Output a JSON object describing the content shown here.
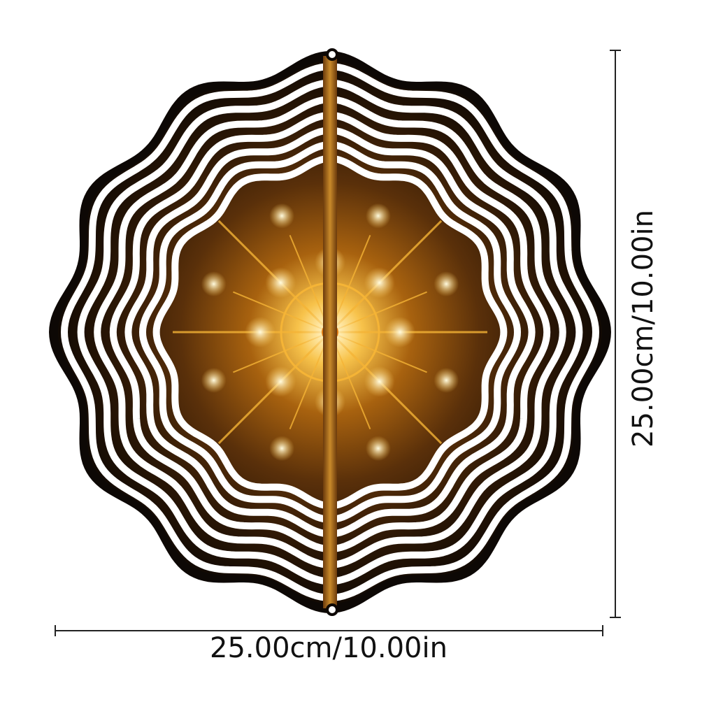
{
  "product": {
    "width_label": "25.00cm/10.00in",
    "height_label": "25.00cm/10.00in",
    "colors": {
      "rim": "#0d0805",
      "gold": "#f5b436",
      "glow": "#fff2b0",
      "dark": "#2a1605",
      "stripe": "#ffffff"
    }
  }
}
